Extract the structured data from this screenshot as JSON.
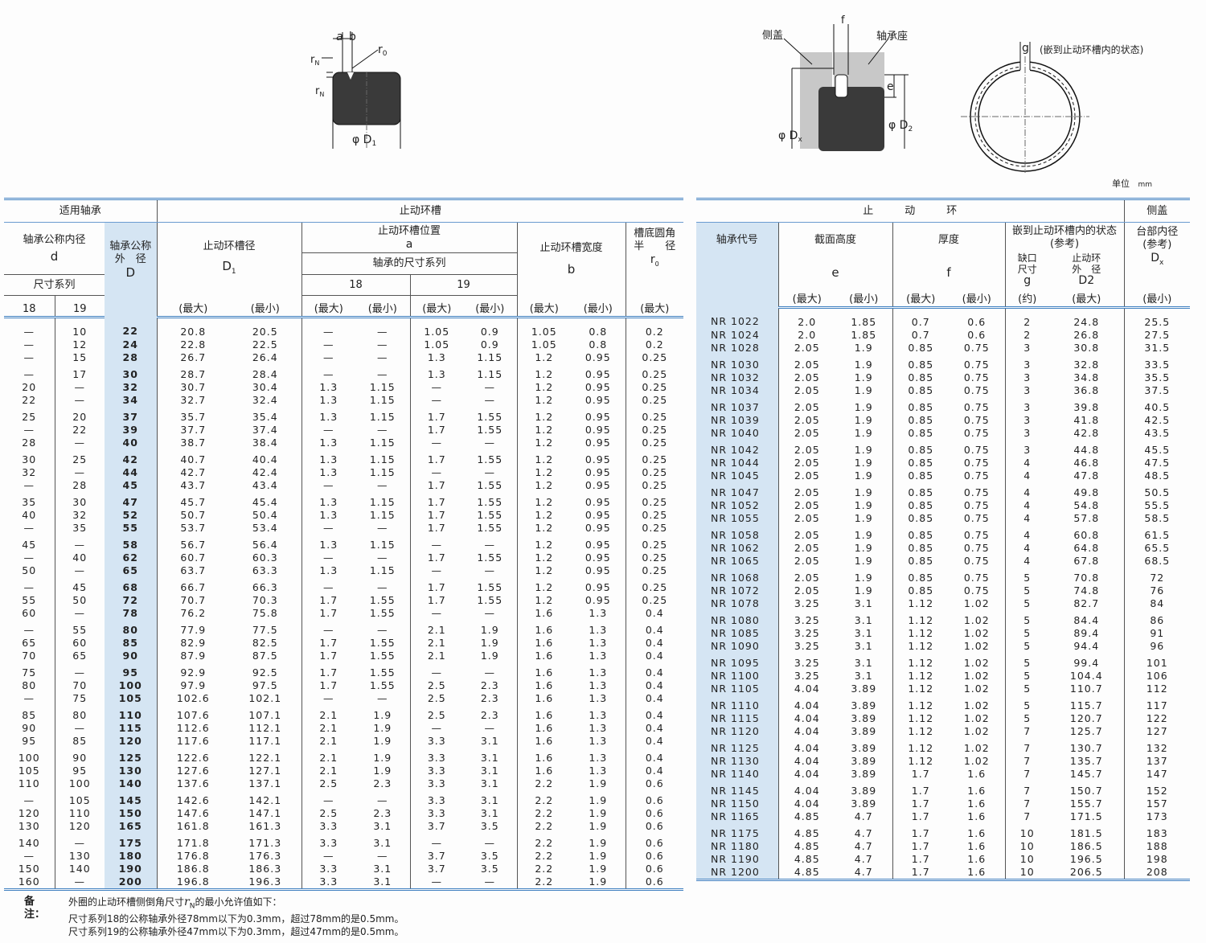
{
  "diagrams": {
    "groove": {
      "a": "a",
      "b": "b",
      "r0": "r",
      "r0_sub": "0",
      "rN_top": "r",
      "rN_top_sub": "N",
      "rN_side": "r",
      "rN_side_sub": "N",
      "D1": "φ D",
      "D1_sub": "1"
    },
    "housing": {
      "cover": "侧盖",
      "housing": "轴承座",
      "f": "f",
      "e": "e",
      "D2": "φ D",
      "D2_sub": "2",
      "Dx": "φ D",
      "Dx_sub": "x"
    },
    "ring": {
      "g": "g",
      "state": "(嵌到止动环槽内的状态)"
    }
  },
  "unit": {
    "label": "单位",
    "value": "mm"
  },
  "left_table": {
    "header": {
      "applicable": "适用轴承",
      "groove": "止动环槽",
      "d_label": "轴承公称内径",
      "d_sym": "d",
      "series": "尺寸系列",
      "s18": "18",
      "s19": "19",
      "D_label1": "轴承公称",
      "D_label2": "外　径",
      "D_sym": "D",
      "D1_label": "止动环槽径",
      "D1_sym": "D",
      "D1_sub": "1",
      "a_label": "止动环槽位置",
      "a_sym": "a",
      "a_series": "轴承的尺寸系列",
      "a18": "18",
      "a19": "19",
      "b_label": "止动环槽宽度",
      "b_sym": "b",
      "r0_label1": "槽底圆角",
      "r0_label2": "半　　径",
      "r0_sym": "r",
      "r0_sub": "0",
      "max": "(最大)",
      "min": "(最小)"
    },
    "rows": [
      [
        "—",
        "10",
        "22",
        "20.8",
        "20.5",
        "—",
        "—",
        "1.05",
        "0.9",
        "1.05",
        "0.8",
        "0.2"
      ],
      [
        "—",
        "12",
        "24",
        "22.8",
        "22.5",
        "—",
        "—",
        "1.05",
        "0.9",
        "1.05",
        "0.8",
        "0.2"
      ],
      [
        "—",
        "15",
        "28",
        "26.7",
        "26.4",
        "—",
        "—",
        "1.3",
        "1.15",
        "1.2",
        "0.95",
        "0.25"
      ],
      [
        "—",
        "17",
        "30",
        "28.7",
        "28.4",
        "—",
        "—",
        "1.3",
        "1.15",
        "1.2",
        "0.95",
        "0.25"
      ],
      [
        "20",
        "—",
        "32",
        "30.7",
        "30.4",
        "1.3",
        "1.15",
        "—",
        "—",
        "1.2",
        "0.95",
        "0.25"
      ],
      [
        "22",
        "—",
        "34",
        "32.7",
        "32.4",
        "1.3",
        "1.15",
        "—",
        "—",
        "1.2",
        "0.95",
        "0.25"
      ],
      [
        "25",
        "20",
        "37",
        "35.7",
        "35.4",
        "1.3",
        "1.15",
        "1.7",
        "1.55",
        "1.2",
        "0.95",
        "0.25"
      ],
      [
        "—",
        "22",
        "39",
        "37.7",
        "37.4",
        "—",
        "—",
        "1.7",
        "1.55",
        "1.2",
        "0.95",
        "0.25"
      ],
      [
        "28",
        "—",
        "40",
        "38.7",
        "38.4",
        "1.3",
        "1.15",
        "—",
        "—",
        "1.2",
        "0.95",
        "0.25"
      ],
      [
        "30",
        "25",
        "42",
        "40.7",
        "40.4",
        "1.3",
        "1.15",
        "1.7",
        "1.55",
        "1.2",
        "0.95",
        "0.25"
      ],
      [
        "32",
        "—",
        "44",
        "42.7",
        "42.4",
        "1.3",
        "1.15",
        "—",
        "—",
        "1.2",
        "0.95",
        "0.25"
      ],
      [
        "—",
        "28",
        "45",
        "43.7",
        "43.4",
        "—",
        "—",
        "1.7",
        "1.55",
        "1.2",
        "0.95",
        "0.25"
      ],
      [
        "35",
        "30",
        "47",
        "45.7",
        "45.4",
        "1.3",
        "1.15",
        "1.7",
        "1.55",
        "1.2",
        "0.95",
        "0.25"
      ],
      [
        "40",
        "32",
        "52",
        "50.7",
        "50.4",
        "1.3",
        "1.15",
        "1.7",
        "1.55",
        "1.2",
        "0.95",
        "0.25"
      ],
      [
        "—",
        "35",
        "55",
        "53.7",
        "53.4",
        "—",
        "—",
        "1.7",
        "1.55",
        "1.2",
        "0.95",
        "0.25"
      ],
      [
        "45",
        "—",
        "58",
        "56.7",
        "56.4",
        "1.3",
        "1.15",
        "—",
        "—",
        "1.2",
        "0.95",
        "0.25"
      ],
      [
        "—",
        "40",
        "62",
        "60.7",
        "60.3",
        "—",
        "—",
        "1.7",
        "1.55",
        "1.2",
        "0.95",
        "0.25"
      ],
      [
        "50",
        "—",
        "65",
        "63.7",
        "63.3",
        "1.3",
        "1.15",
        "—",
        "—",
        "1.2",
        "0.95",
        "0.25"
      ],
      [
        "—",
        "45",
        "68",
        "66.7",
        "66.3",
        "—",
        "—",
        "1.7",
        "1.55",
        "1.2",
        "0.95",
        "0.25"
      ],
      [
        "55",
        "50",
        "72",
        "70.7",
        "70.3",
        "1.7",
        "1.55",
        "1.7",
        "1.55",
        "1.2",
        "0.95",
        "0.25"
      ],
      [
        "60",
        "—",
        "78",
        "76.2",
        "75.8",
        "1.7",
        "1.55",
        "—",
        "—",
        "1.6",
        "1.3",
        "0.4"
      ],
      [
        "—",
        "55",
        "80",
        "77.9",
        "77.5",
        "—",
        "—",
        "2.1",
        "1.9",
        "1.6",
        "1.3",
        "0.4"
      ],
      [
        "65",
        "60",
        "85",
        "82.9",
        "82.5",
        "1.7",
        "1.55",
        "2.1",
        "1.9",
        "1.6",
        "1.3",
        "0.4"
      ],
      [
        "70",
        "65",
        "90",
        "87.9",
        "87.5",
        "1.7",
        "1.55",
        "2.1",
        "1.9",
        "1.6",
        "1.3",
        "0.4"
      ],
      [
        "75",
        "—",
        "95",
        "92.9",
        "92.5",
        "1.7",
        "1.55",
        "—",
        "—",
        "1.6",
        "1.3",
        "0.4"
      ],
      [
        "80",
        "70",
        "100",
        "97.9",
        "97.5",
        "1.7",
        "1.55",
        "2.5",
        "2.3",
        "1.6",
        "1.3",
        "0.4"
      ],
      [
        "—",
        "75",
        "105",
        "102.6",
        "102.1",
        "—",
        "—",
        "2.5",
        "2.3",
        "1.6",
        "1.3",
        "0.4"
      ],
      [
        "85",
        "80",
        "110",
        "107.6",
        "107.1",
        "2.1",
        "1.9",
        "2.5",
        "2.3",
        "1.6",
        "1.3",
        "0.4"
      ],
      [
        "90",
        "—",
        "115",
        "112.6",
        "112.1",
        "2.1",
        "1.9",
        "—",
        "—",
        "1.6",
        "1.3",
        "0.4"
      ],
      [
        "95",
        "85",
        "120",
        "117.6",
        "117.1",
        "2.1",
        "1.9",
        "3.3",
        "3.1",
        "1.6",
        "1.3",
        "0.4"
      ],
      [
        "100",
        "90",
        "125",
        "122.6",
        "122.1",
        "2.1",
        "1.9",
        "3.3",
        "3.1",
        "1.6",
        "1.3",
        "0.4"
      ],
      [
        "105",
        "95",
        "130",
        "127.6",
        "127.1",
        "2.1",
        "1.9",
        "3.3",
        "3.1",
        "1.6",
        "1.3",
        "0.4"
      ],
      [
        "110",
        "100",
        "140",
        "137.6",
        "137.1",
        "2.5",
        "2.3",
        "3.3",
        "3.1",
        "2.2",
        "1.9",
        "0.6"
      ],
      [
        "—",
        "105",
        "145",
        "142.6",
        "142.1",
        "—",
        "—",
        "3.3",
        "3.1",
        "2.2",
        "1.9",
        "0.6"
      ],
      [
        "120",
        "110",
        "150",
        "147.6",
        "147.1",
        "2.5",
        "2.3",
        "3.3",
        "3.1",
        "2.2",
        "1.9",
        "0.6"
      ],
      [
        "130",
        "120",
        "165",
        "161.8",
        "161.3",
        "3.3",
        "3.1",
        "3.7",
        "3.5",
        "2.2",
        "1.9",
        "0.6"
      ],
      [
        "140",
        "—",
        "175",
        "171.8",
        "171.3",
        "3.3",
        "3.1",
        "—",
        "—",
        "2.2",
        "1.9",
        "0.6"
      ],
      [
        "—",
        "130",
        "180",
        "176.8",
        "176.3",
        "—",
        "—",
        "3.7",
        "3.5",
        "2.2",
        "1.9",
        "0.6"
      ],
      [
        "150",
        "140",
        "190",
        "186.8",
        "186.3",
        "3.3",
        "3.1",
        "3.7",
        "3.5",
        "2.2",
        "1.9",
        "0.6"
      ],
      [
        "160",
        "—",
        "200",
        "196.8",
        "196.3",
        "3.3",
        "3.1",
        "—",
        "—",
        "2.2",
        "1.9",
        "0.6"
      ]
    ]
  },
  "right_table": {
    "header": {
      "ring": "止　　　动　　　环",
      "cover": "侧盖",
      "code": "轴承代号",
      "e_label": "截面高度",
      "e_sym": "e",
      "f_label": "厚度",
      "f_sym": "f",
      "state_label": "嵌到止动环槽内的状态",
      "state_ref": "(参考)",
      "g_label1": "缺口",
      "g_label2": "尺寸",
      "g_sym": "g",
      "D2_label1": "止动环",
      "D2_label2": "外　径",
      "D2_sym": "D2",
      "Dx_label": "台部内径",
      "Dx_ref": "(参考)",
      "Dx_sym": "D",
      "Dx_sub": "x",
      "max": "(最大)",
      "min": "(最小)",
      "approx": "(约)"
    },
    "rows": [
      [
        "NR 1022",
        "2.0",
        "1.85",
        "0.7",
        "0.6",
        "2",
        "24.8",
        "25.5"
      ],
      [
        "NR 1024",
        "2.0",
        "1.85",
        "0.7",
        "0.6",
        "2",
        "26.8",
        "27.5"
      ],
      [
        "NR 1028",
        "2.05",
        "1.9",
        "0.85",
        "0.75",
        "3",
        "30.8",
        "31.5"
      ],
      [
        "NR 1030",
        "2.05",
        "1.9",
        "0.85",
        "0.75",
        "3",
        "32.8",
        "33.5"
      ],
      [
        "NR 1032",
        "2.05",
        "1.9",
        "0.85",
        "0.75",
        "3",
        "34.8",
        "35.5"
      ],
      [
        "NR 1034",
        "2.05",
        "1.9",
        "0.85",
        "0.75",
        "3",
        "36.8",
        "37.5"
      ],
      [
        "NR 1037",
        "2.05",
        "1.9",
        "0.85",
        "0.75",
        "3",
        "39.8",
        "40.5"
      ],
      [
        "NR 1039",
        "2.05",
        "1.9",
        "0.85",
        "0.75",
        "3",
        "41.8",
        "42.5"
      ],
      [
        "NR 1040",
        "2.05",
        "1.9",
        "0.85",
        "0.75",
        "3",
        "42.8",
        "43.5"
      ],
      [
        "NR 1042",
        "2.05",
        "1.9",
        "0.85",
        "0.75",
        "3",
        "44.8",
        "45.5"
      ],
      [
        "NR 1044",
        "2.05",
        "1.9",
        "0.85",
        "0.75",
        "4",
        "46.8",
        "47.5"
      ],
      [
        "NR 1045",
        "2.05",
        "1.9",
        "0.85",
        "0.75",
        "4",
        "47.8",
        "48.5"
      ],
      [
        "NR 1047",
        "2.05",
        "1.9",
        "0.85",
        "0.75",
        "4",
        "49.8",
        "50.5"
      ],
      [
        "NR 1052",
        "2.05",
        "1.9",
        "0.85",
        "0.75",
        "4",
        "54.8",
        "55.5"
      ],
      [
        "NR 1055",
        "2.05",
        "1.9",
        "0.85",
        "0.75",
        "4",
        "57.8",
        "58.5"
      ],
      [
        "NR 1058",
        "2.05",
        "1.9",
        "0.85",
        "0.75",
        "4",
        "60.8",
        "61.5"
      ],
      [
        "NR 1062",
        "2.05",
        "1.9",
        "0.85",
        "0.75",
        "4",
        "64.8",
        "65.5"
      ],
      [
        "NR 1065",
        "2.05",
        "1.9",
        "0.85",
        "0.75",
        "4",
        "67.8",
        "68.5"
      ],
      [
        "NR 1068",
        "2.05",
        "1.9",
        "0.85",
        "0.75",
        "5",
        "70.8",
        "72"
      ],
      [
        "NR 1072",
        "2.05",
        "1.9",
        "0.85",
        "0.75",
        "5",
        "74.8",
        "76"
      ],
      [
        "NR 1078",
        "3.25",
        "3.1",
        "1.12",
        "1.02",
        "5",
        "82.7",
        "84"
      ],
      [
        "NR 1080",
        "3.25",
        "3.1",
        "1.12",
        "1.02",
        "5",
        "84.4",
        "86"
      ],
      [
        "NR 1085",
        "3.25",
        "3.1",
        "1.12",
        "1.02",
        "5",
        "89.4",
        "91"
      ],
      [
        "NR 1090",
        "3.25",
        "3.1",
        "1.12",
        "1.02",
        "5",
        "94.4",
        "96"
      ],
      [
        "NR 1095",
        "3.25",
        "3.1",
        "1.12",
        "1.02",
        "5",
        "99.4",
        "101"
      ],
      [
        "NR 1100",
        "3.25",
        "3.1",
        "1.12",
        "1.02",
        "5",
        "104.4",
        "106"
      ],
      [
        "NR 1105",
        "4.04",
        "3.89",
        "1.12",
        "1.02",
        "5",
        "110.7",
        "112"
      ],
      [
        "NR 1110",
        "4.04",
        "3.89",
        "1.12",
        "1.02",
        "5",
        "115.7",
        "117"
      ],
      [
        "NR 1115",
        "4.04",
        "3.89",
        "1.12",
        "1.02",
        "5",
        "120.7",
        "122"
      ],
      [
        "NR 1120",
        "4.04",
        "3.89",
        "1.12",
        "1.02",
        "7",
        "125.7",
        "127"
      ],
      [
        "NR 1125",
        "4.04",
        "3.89",
        "1.12",
        "1.02",
        "7",
        "130.7",
        "132"
      ],
      [
        "NR 1130",
        "4.04",
        "3.89",
        "1.12",
        "1.02",
        "7",
        "135.7",
        "137"
      ],
      [
        "NR 1140",
        "4.04",
        "3.89",
        "1.7",
        "1.6",
        "7",
        "145.7",
        "147"
      ],
      [
        "NR 1145",
        "4.04",
        "3.89",
        "1.7",
        "1.6",
        "7",
        "150.7",
        "152"
      ],
      [
        "NR 1150",
        "4.04",
        "3.89",
        "1.7",
        "1.6",
        "7",
        "155.7",
        "157"
      ],
      [
        "NR 1165",
        "4.85",
        "4.7",
        "1.7",
        "1.6",
        "7",
        "171.5",
        "173"
      ],
      [
        "NR 1175",
        "4.85",
        "4.7",
        "1.7",
        "1.6",
        "10",
        "181.5",
        "183"
      ],
      [
        "NR 1180",
        "4.85",
        "4.7",
        "1.7",
        "1.6",
        "10",
        "186.5",
        "188"
      ],
      [
        "NR 1190",
        "4.85",
        "4.7",
        "1.7",
        "1.6",
        "10",
        "196.5",
        "198"
      ],
      [
        "NR 1200",
        "4.85",
        "4.7",
        "1.7",
        "1.6",
        "10",
        "206.5",
        "208"
      ]
    ]
  },
  "note": {
    "label": "备注：",
    "line1_prefix": "外圈的止动环槽侧倒角尺寸",
    "line1_sym": "r",
    "line1_sub": "N",
    "line1_suffix": "的最小允许值如下：",
    "line2": "尺寸系列18的公称轴承外径78mm以下为0.3mm，超过78mm的是0.5mm。",
    "line3": "尺寸系列19的公称轴承外径47mm以下为0.3mm，超过47mm的是0.5mm。"
  },
  "colors": {
    "rule": "#3f7fc0",
    "highlight": "#d5e5f3",
    "block": "#3a3a3a",
    "gray": "#c8c8c8"
  }
}
